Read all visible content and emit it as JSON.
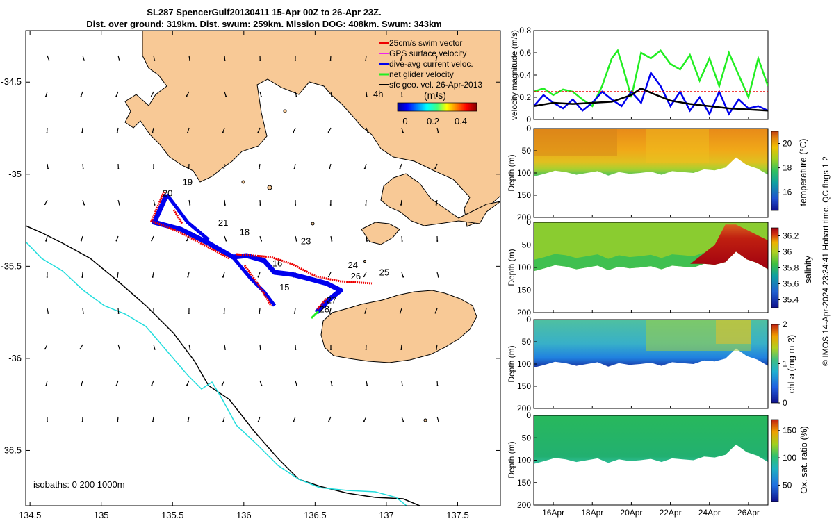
{
  "title_line1": "SL287 SpencerGulf20130411 15-Apr 00Z to 26-Apr 23Z.",
  "title_line2": "Dist. over ground: 319km. Dist. swum: 259km. Mission DOG: 408km. Swum: 343km",
  "credit": "© IMOS 14-Apr-2024 23:34:41 Hobart time. QC flags 1  2",
  "colors": {
    "land": "#f8c996",
    "track_blue": "#0000ee",
    "track_red": "#ee0000",
    "isobath_cyan": "#22dddd",
    "green": "#22ee22",
    "magenta": "#ee22ee"
  },
  "map": {
    "lon_ticks": [
      "134.5",
      "135",
      "135.5",
      "136",
      "136.5",
      "137",
      "137.5"
    ],
    "lat_ticks": [
      "-34.5",
      "-35",
      "-35.5",
      "-36",
      "36.5"
    ],
    "xlim": [
      134.47,
      137.8
    ],
    "ylim": [
      -36.8,
      -34.22
    ],
    "isobaths_label": "isobaths: 0   200  1000m",
    "legend": [
      {
        "label": "25cm/s swim vector",
        "icon": "red-arrow-icon"
      },
      {
        "label": "GPS surface velocity",
        "icon": "magenta-arrow-icon"
      },
      {
        "label": "dive-avg current veloc.",
        "icon": "blue-arrow-icon"
      },
      {
        "label": "net glider velocity",
        "icon": "green-arrow-icon"
      },
      {
        "label": "sfc geo. vel. 26-Apr-2013",
        "icon": "black-arrow-icon"
      }
    ],
    "legend_4h": "4h",
    "colorbar": {
      "label": "(m/s)",
      "ticks": [
        "0",
        "0.2",
        "0.4"
      ]
    },
    "day_labels": [
      {
        "t": "19",
        "lon": 135.57,
        "lat": -35.06
      },
      {
        "t": "20",
        "lon": 135.43,
        "lat": -35.12
      },
      {
        "t": "21",
        "lon": 135.82,
        "lat": -35.28
      },
      {
        "t": "18",
        "lon": 135.97,
        "lat": -35.33
      },
      {
        "t": "23",
        "lon": 136.4,
        "lat": -35.38
      },
      {
        "t": "16",
        "lon": 136.2,
        "lat": -35.5
      },
      {
        "t": "15",
        "lon": 136.25,
        "lat": -35.63
      },
      {
        "t": "24",
        "lon": 136.73,
        "lat": -35.51
      },
      {
        "t": "26",
        "lon": 136.75,
        "lat": -35.57
      },
      {
        "t": "25",
        "lon": 136.95,
        "lat": -35.55
      },
      {
        "t": "27",
        "lon": 136.58,
        "lat": -35.7
      },
      {
        "t": "28",
        "lon": 136.53,
        "lat": -35.75
      }
    ]
  },
  "chart_data": [
    {
      "type": "line",
      "ylabel": "velocity magnitude (m/s)",
      "ylim": [
        0,
        0.8
      ],
      "yticks": [
        "0",
        "0.2",
        "0.4",
        "0.6",
        "0.8"
      ],
      "xlim": [
        15,
        27
      ],
      "series": [
        {
          "name": "net glider velocity",
          "color": "#22ee22",
          "x": [
            15,
            15.5,
            16,
            16.5,
            17,
            17.5,
            18,
            18.5,
            19,
            19.3,
            19.6,
            20,
            20.5,
            21,
            21.5,
            22,
            22.5,
            23,
            23.5,
            24,
            24.5,
            25,
            25.5,
            26,
            26.5,
            27
          ],
          "values": [
            0.25,
            0.28,
            0.22,
            0.27,
            0.25,
            0.18,
            0.12,
            0.3,
            0.55,
            0.62,
            0.45,
            0.2,
            0.6,
            0.55,
            0.62,
            0.5,
            0.45,
            0.58,
            0.35,
            0.55,
            0.3,
            0.6,
            0.4,
            0.2,
            0.55,
            0.3
          ]
        },
        {
          "name": "dive-avg current veloc.",
          "color": "#0000ee",
          "x": [
            15,
            15.5,
            16,
            16.5,
            17,
            17.5,
            18,
            18.5,
            19,
            19.5,
            20,
            20.5,
            21,
            21.5,
            22,
            22.5,
            23,
            23.5,
            24,
            24.5,
            25,
            25.5,
            26,
            26.5,
            27
          ],
          "values": [
            0.12,
            0.22,
            0.15,
            0.1,
            0.18,
            0.08,
            0.15,
            0.25,
            0.18,
            0.12,
            0.25,
            0.15,
            0.42,
            0.3,
            0.12,
            0.25,
            0.08,
            0.2,
            0.05,
            0.25,
            0.05,
            0.18,
            0.1,
            0.12,
            0.08
          ]
        },
        {
          "name": "25cm/s swim vector",
          "color": "#ee0000",
          "x": [
            15,
            27
          ],
          "values": [
            0.25,
            0.25
          ]
        },
        {
          "name": "depth-avg",
          "color": "#000000",
          "x": [
            15,
            16,
            17,
            18,
            19,
            20,
            20.5,
            21,
            22,
            23,
            24,
            25,
            26,
            27
          ],
          "values": [
            0.12,
            0.15,
            0.14,
            0.15,
            0.16,
            0.22,
            0.28,
            0.24,
            0.17,
            0.14,
            0.12,
            0.1,
            0.09,
            0.08
          ]
        }
      ]
    },
    {
      "type": "heatmap",
      "field": "temperature",
      "ylabel": "Depth (m)",
      "clabel": "temperature (°C)",
      "cticks": [
        "16",
        "18",
        "20"
      ],
      "clim": [
        14.5,
        21
      ],
      "yticks": [
        "0",
        "50",
        "100",
        "150",
        "200"
      ],
      "bottom_depth_m": [
        108,
        102,
        95,
        98,
        104,
        100,
        96,
        106,
        98,
        102,
        100,
        97,
        104,
        96,
        98,
        100,
        92,
        94,
        88,
        65,
        82,
        90,
        104
      ],
      "upper_C": 20.3,
      "mid_C": 19.3,
      "bottom_C": 17.7
    },
    {
      "type": "heatmap",
      "field": "salinity",
      "ylabel": "Depth (m)",
      "clabel": "salinity",
      "cticks": [
        "35.4",
        "35.6",
        "35.8",
        "36",
        "36.2"
      ],
      "clim": [
        35.3,
        36.3
      ],
      "yticks": [
        "0",
        "50",
        "100",
        "150",
        "200"
      ],
      "bottom_depth_m": [
        108,
        102,
        95,
        98,
        104,
        100,
        96,
        106,
        98,
        102,
        100,
        97,
        104,
        96,
        98,
        100,
        92,
        94,
        88,
        65,
        82,
        90,
        104
      ],
      "values_psu": [
        35.85,
        35.9,
        35.95,
        35.85,
        36.0,
        35.95,
        35.9,
        36.0,
        35.95,
        35.9,
        35.95,
        35.9,
        36.0,
        35.95,
        35.9,
        35.95,
        36.2,
        36.3,
        36.3,
        36.3,
        36.3,
        36.3,
        36.25
      ]
    },
    {
      "type": "heatmap",
      "field": "chl-a",
      "ylabel": "Depth (m)",
      "clabel": "chl-a (mg m-3)",
      "cticks": [
        "0",
        "1",
        "2"
      ],
      "clim": [
        0,
        2
      ],
      "yticks": [
        "0",
        "50",
        "100",
        "150",
        "200"
      ],
      "bottom_depth_m": [
        108,
        102,
        95,
        98,
        104,
        100,
        96,
        106,
        98,
        102,
        100,
        97,
        104,
        96,
        98,
        100,
        92,
        94,
        88,
        65,
        82,
        90,
        104
      ],
      "surface_mg_m3": [
        0.7,
        0.8,
        0.9,
        0.8,
        0.75,
        0.85,
        0.9,
        0.8,
        1.0,
        1.1,
        1.2,
        1.25,
        1.35,
        1.3,
        1.4,
        1.5,
        1.55,
        1.6,
        1.65,
        1.9,
        1.5,
        1.35,
        1.2
      ]
    },
    {
      "type": "heatmap",
      "field": "oxygen",
      "ylabel": "Depth (m)",
      "clabel": "Ox. sat. ratio (%)",
      "cticks": [
        "50",
        "100",
        "150"
      ],
      "clim": [
        20,
        170
      ],
      "yticks": [
        "0",
        "50",
        "100",
        "150",
        "200"
      ],
      "bottom_depth_m": [
        108,
        102,
        95,
        98,
        104,
        100,
        96,
        106,
        98,
        102,
        100,
        97,
        104,
        96,
        98,
        100,
        92,
        94,
        88,
        65,
        82,
        90,
        104
      ],
      "value_pct": 108
    }
  ],
  "time_axis": {
    "ticks": [
      "16Apr",
      "18Apr",
      "20Apr",
      "22Apr",
      "24Apr",
      "26Apr"
    ],
    "tick_days": [
      16,
      18,
      20,
      22,
      24,
      26
    ],
    "xlim": [
      15,
      27
    ]
  }
}
